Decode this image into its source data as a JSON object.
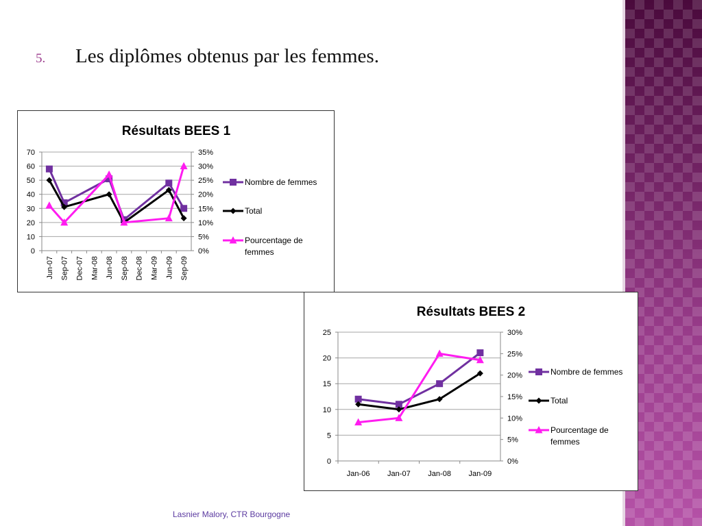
{
  "heading": {
    "number": "5.",
    "text": "Les diplômes obtenus par les femmes."
  },
  "footer": "Lasnier Malory, CTR Bourgogne",
  "colors": {
    "femmes": "#7030a0",
    "total": "#000000",
    "pourcentage": "#ff1cf0",
    "bullet": "#9b3a8c"
  },
  "chart_data": [
    {
      "type": "line",
      "title": "Résultats BEES 1",
      "categories": [
        "Jun-07",
        "Sep-07",
        "Dec-07",
        "Mar-08",
        "Jun-08",
        "Sep-08",
        "Dec-08",
        "Mar-09",
        "Jun-09",
        "Sep-09"
      ],
      "ylim": [
        0,
        70
      ],
      "yticks": [
        "0",
        "10",
        "20",
        "30",
        "40",
        "50",
        "60",
        "70"
      ],
      "y2lim": [
        0,
        0.35
      ],
      "y2ticks": [
        "0%",
        "5%",
        "10%",
        "15%",
        "20%",
        "25%",
        "30%",
        "35%"
      ],
      "xlabels_rotated": true,
      "legend_position": "right",
      "grid": true,
      "series": [
        {
          "name": "Nombre de femmes",
          "axis": "left",
          "marker": "square",
          "color": "#7030a0",
          "values": [
            58,
            34,
            null,
            null,
            51,
            22,
            null,
            null,
            48,
            30
          ]
        },
        {
          "name": "Total",
          "axis": "left",
          "marker": "diamond",
          "color": "#000000",
          "values": [
            50,
            31,
            null,
            null,
            40,
            20,
            null,
            null,
            43,
            23
          ]
        },
        {
          "name": "Pourcentage de femmes",
          "axis": "right",
          "marker": "triangle",
          "color": "#ff1cf0",
          "values": [
            0.16,
            0.1,
            null,
            null,
            0.27,
            0.1,
            null,
            null,
            0.115,
            0.3
          ]
        }
      ]
    },
    {
      "type": "line",
      "title": "Résultats BEES 2",
      "categories": [
        "Jan-06",
        "Jan-07",
        "Jan-08",
        "Jan-09"
      ],
      "ylim": [
        0,
        25
      ],
      "yticks": [
        "0",
        "5",
        "10",
        "15",
        "20",
        "25"
      ],
      "y2lim": [
        0,
        0.3
      ],
      "y2ticks": [
        "0%",
        "5%",
        "10%",
        "15%",
        "20%",
        "25%",
        "30%"
      ],
      "xlabels_rotated": false,
      "legend_position": "right",
      "grid": true,
      "series": [
        {
          "name": "Nombre de femmes",
          "axis": "left",
          "marker": "square",
          "color": "#7030a0",
          "values": [
            12,
            11,
            15,
            21
          ]
        },
        {
          "name": "Total",
          "axis": "left",
          "marker": "diamond",
          "color": "#000000",
          "values": [
            11,
            10,
            12,
            17
          ]
        },
        {
          "name": "Pourcentage de femmes",
          "axis": "right",
          "marker": "triangle",
          "color": "#ff1cf0",
          "values": [
            0.09,
            0.1,
            0.25,
            0.235
          ]
        }
      ]
    }
  ]
}
